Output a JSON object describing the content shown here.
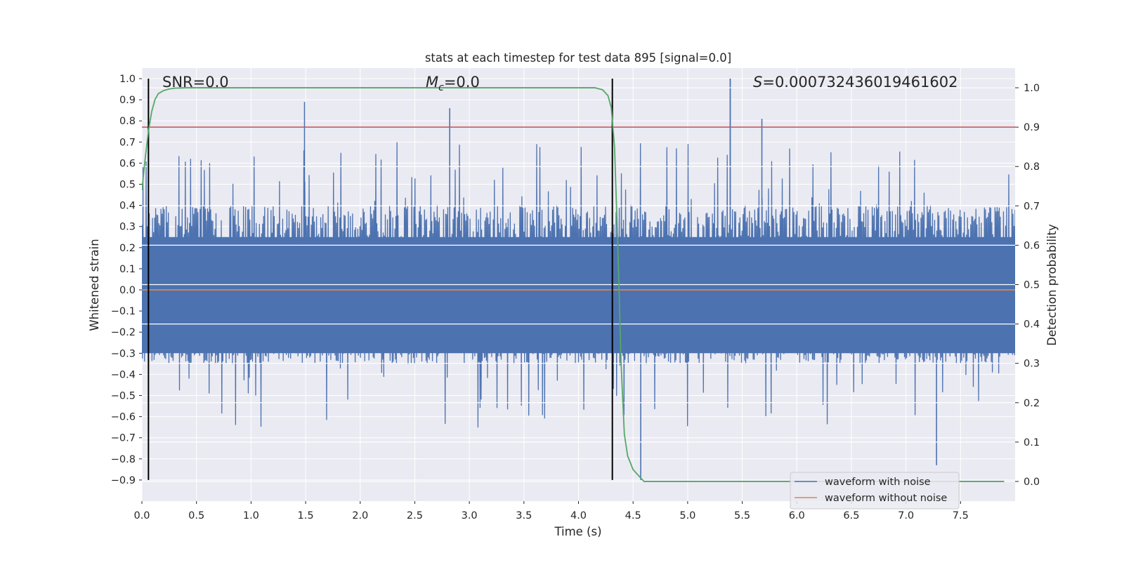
{
  "chart_data": {
    "type": "line",
    "title": "stats at each timestep for test data 895 [signal=0.0]",
    "xlabel": "Time (s)",
    "ylabel_left": "Whitened strain",
    "ylabel_right": "Detection probability",
    "xlim": [
      0.0,
      8.0
    ],
    "ylim_left": [
      -1.0,
      1.05
    ],
    "ylim_right": [
      -0.05,
      1.05
    ],
    "grid": true,
    "legend_placement": "lower-right",
    "x_tick_labels": [
      "0.0",
      "0.5",
      "1.0",
      "1.5",
      "2.0",
      "2.5",
      "3.0",
      "3.5",
      "4.0",
      "4.5",
      "5.0",
      "5.5",
      "6.0",
      "6.5",
      "7.0",
      "7.5"
    ],
    "y_left_tick_labels": [
      "1.0",
      "0.9",
      "0.8",
      "0.7",
      "0.6",
      "0.5",
      "0.4",
      "0.3",
      "0.2",
      "0.1",
      "0.0",
      "−0.1",
      "−0.2",
      "−0.3",
      "−0.4",
      "−0.5",
      "−0.6",
      "−0.7",
      "−0.8",
      "−0.9"
    ],
    "y_right_tick_labels": [
      "1.0",
      "0.9",
      "0.8",
      "0.7",
      "0.6",
      "0.5",
      "0.4",
      "0.3",
      "0.2",
      "0.1",
      "0.0"
    ],
    "annotations": {
      "snr": "SNR=0.0",
      "mc_symbol": "M",
      "mc_sub": "c",
      "mc_value": "=0.0",
      "s_symbol": "S",
      "s_value": "=0.000732436019461602"
    },
    "series": [
      {
        "name": "waveform with noise",
        "color": "#4c72b0",
        "kind": "noise",
        "envelope_typical": [
          -0.3,
          0.4
        ],
        "max_value": 1.0,
        "max_at": 5.39,
        "min_value": -0.9,
        "min_at": 4.57,
        "notable_peaks": [
          {
            "x": 1.49,
            "y": 0.89
          },
          {
            "x": 2.82,
            "y": 0.86
          },
          {
            "x": 5.39,
            "y": 1.0
          },
          {
            "x": 5.68,
            "y": 0.81
          },
          {
            "x": 7.28,
            "y": -0.83
          }
        ]
      },
      {
        "name": "waveform without noise",
        "color": "#dd8452",
        "x": [
          0.0,
          8.0
        ],
        "y": [
          0.0,
          0.0
        ]
      },
      {
        "color": "#55a868",
        "axis": "right",
        "x": [
          0.0,
          0.03,
          0.06,
          0.09,
          0.12,
          0.15,
          0.2,
          0.25,
          0.3,
          0.4,
          0.5,
          1.0,
          2.0,
          3.0,
          4.0,
          4.15,
          4.22,
          4.27,
          4.3,
          4.33,
          4.36,
          4.39,
          4.42,
          4.45,
          4.5,
          4.6,
          5.0,
          6.0,
          7.0,
          7.9
        ],
        "y": [
          0.74,
          0.82,
          0.89,
          0.94,
          0.97,
          0.985,
          0.993,
          0.997,
          0.999,
          1.0,
          1.0,
          1.0,
          1.0,
          1.0,
          1.0,
          1.0,
          0.995,
          0.98,
          0.95,
          0.85,
          0.6,
          0.3,
          0.12,
          0.065,
          0.03,
          0.0,
          0.0,
          0.0,
          0.0,
          0.0
        ]
      }
    ],
    "threshold": {
      "color": "#c44e52",
      "y_right": 0.9
    },
    "markers": {
      "color": "#000000",
      "x": [
        0.06,
        4.31
      ],
      "y_range": [
        -0.9,
        1.0
      ]
    }
  }
}
